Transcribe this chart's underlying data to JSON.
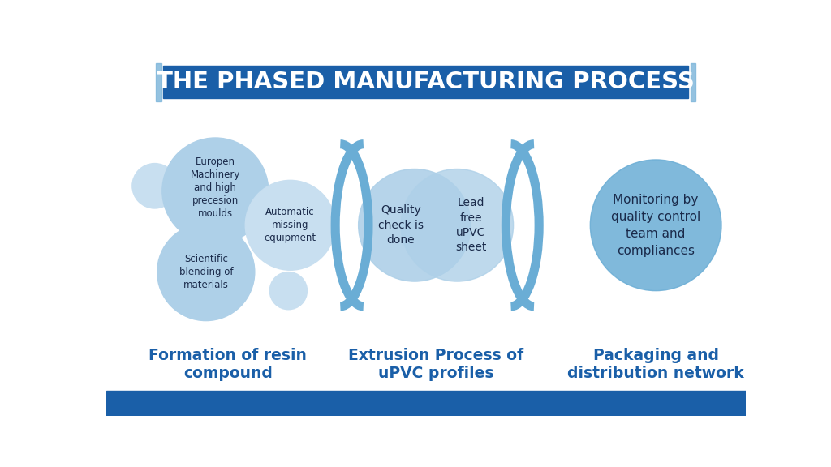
{
  "title": "THE PHASED MANUFACTURING PROCESS",
  "title_bg": "#1a5fa8",
  "title_color": "#ffffff",
  "title_accent": "#7ab3d9",
  "bg_color": "#ffffff",
  "footer_color": "#1a5fa8",
  "blue_dark": "#1a5fa8",
  "blue_mid": "#6aadd5",
  "blue_mid2": "#5a9ec8",
  "blue_light": "#aed0e8",
  "blue_lighter": "#c8dff0",
  "blue_solid": "#6aadd5",
  "text_dark": "#1a2a4a",
  "section1_label": "Formation of resin\ncompound",
  "section2_label": "Extrusion Process of\nuPVC profiles",
  "section3_label": "Packaging and\ndistribution network",
  "circle1_texts": [
    "Europen\nMachinery\nand high\nprecesion\nmoulds",
    "Scientific\nblending of\nmaterials",
    "Automatic\nmissing\nequipment"
  ],
  "venn_left_text": "Quality\ncheck is\ndone",
  "venn_right_text": "Lead\nfree\nuPVC\nsheet",
  "circle3_text": "Monitoring by\nquality control\nteam and\ncompliances",
  "bracket_color": "#6aadd5",
  "bracket_lw": 8
}
